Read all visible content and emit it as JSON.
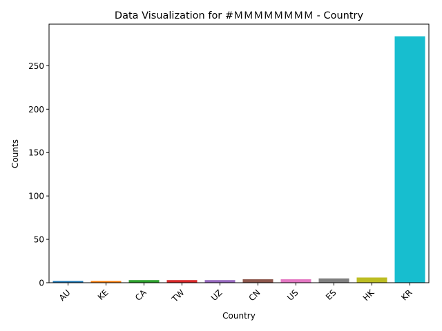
{
  "chart_data": {
    "type": "bar",
    "title": "Data Visualization for #ＭＭＭＭＭＭＭＭ - Country",
    "xlabel": "Country",
    "ylabel": "Counts",
    "categories": [
      "AU",
      "KE",
      "CA",
      "TW",
      "UZ",
      "CN",
      "US",
      "ES",
      "HK",
      "KR"
    ],
    "values": [
      2,
      2,
      3,
      3,
      3,
      4,
      4,
      5,
      6,
      284
    ],
    "colors": [
      "#1f77b4",
      "#ff7f0e",
      "#2ca02c",
      "#d62728",
      "#9467bd",
      "#8c564b",
      "#e377c2",
      "#7f7f7f",
      "#bcbd22",
      "#17becf"
    ],
    "ylim": [
      0,
      298
    ],
    "yticks": [
      0,
      50,
      100,
      150,
      200,
      250
    ],
    "grid": false,
    "legend": "none"
  }
}
